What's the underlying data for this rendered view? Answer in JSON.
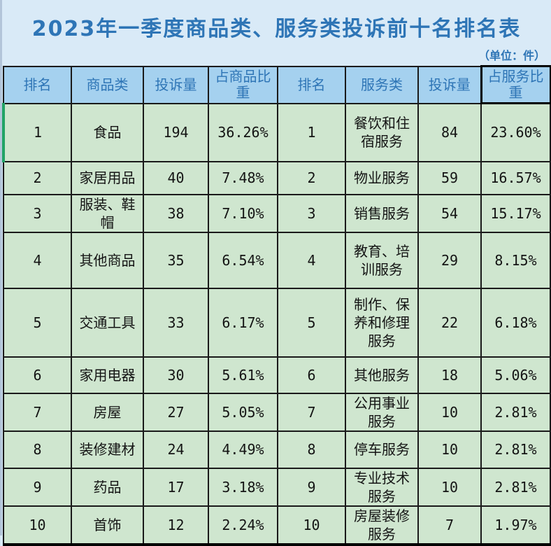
{
  "chart_data": {
    "type": "table",
    "title": "2023年一季度商品类、服务类投诉前十名排名表",
    "unit_note": "（单位：件）",
    "columns": [
      "排名",
      "商品类",
      "投诉量",
      "占商品比重",
      "排名",
      "服务类",
      "投诉量",
      "占服务比重"
    ],
    "rows": [
      [
        "1",
        "食品",
        "194",
        "36.26%",
        "1",
        "餐饮和住宿服务",
        "84",
        "23.60%"
      ],
      [
        "2",
        "家居用品",
        "40",
        "7.48%",
        "2",
        "物业服务",
        "59",
        "16.57%"
      ],
      [
        "3",
        "服装、鞋帽",
        "38",
        "7.10%",
        "3",
        "销售服务",
        "54",
        "15.17%"
      ],
      [
        "4",
        "其他商品",
        "35",
        "6.54%",
        "4",
        "教育、培训服务",
        "29",
        "8.15%"
      ],
      [
        "5",
        "交通工具",
        "33",
        "6.17%",
        "5",
        "制作、保养和修理服务",
        "22",
        "6.18%"
      ],
      [
        "6",
        "家用电器",
        "30",
        "5.61%",
        "6",
        "其他服务",
        "18",
        "5.06%"
      ],
      [
        "7",
        "房屋",
        "27",
        "5.05%",
        "7",
        "公用事业服务",
        "10",
        "2.81%"
      ],
      [
        "8",
        "装修建材",
        "24",
        "4.49%",
        "8",
        "停车服务",
        "10",
        "2.81%"
      ],
      [
        "9",
        "药品",
        "17",
        "3.18%",
        "9",
        "专业技术服务",
        "10",
        "2.81%"
      ],
      [
        "10",
        "首饰",
        "12",
        "2.24%",
        "10",
        "房屋装修服务",
        "7",
        "1.97%"
      ]
    ]
  },
  "colors": {
    "page_background": "#d9eaf7",
    "title_text": "#2e75b6",
    "header_background": "#a5d1ef",
    "header_text": "#2e75b6",
    "cell_background": "#cfe6cf",
    "cell_text": "#141414",
    "grid_border": "#1a1a1a",
    "selection_green": "#21a366"
  }
}
